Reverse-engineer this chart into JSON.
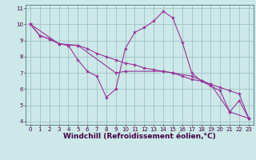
{
  "xlabel": "Windchill (Refroidissement éolien,°C)",
  "bg_color": "#cce8e8",
  "line_color": "#993399",
  "grid_color": "#99bbbb",
  "xlim": [
    -0.5,
    23.5
  ],
  "ylim": [
    3.8,
    11.2
  ],
  "xticks": [
    0,
    1,
    2,
    3,
    4,
    5,
    6,
    7,
    8,
    9,
    10,
    11,
    12,
    13,
    14,
    15,
    16,
    17,
    18,
    19,
    20,
    21,
    22,
    23
  ],
  "yticks": [
    4,
    5,
    6,
    7,
    8,
    9,
    10,
    11
  ],
  "line1_x": [
    0,
    1,
    2,
    3,
    4,
    5,
    6,
    7,
    8,
    9,
    10,
    11,
    12,
    13,
    14,
    15,
    16,
    17,
    18,
    19,
    20,
    21,
    22,
    23
  ],
  "line1_y": [
    10.0,
    9.3,
    9.1,
    8.8,
    8.7,
    7.8,
    7.1,
    6.8,
    5.5,
    6.0,
    8.5,
    9.5,
    9.8,
    10.2,
    10.8,
    10.4,
    8.9,
    7.0,
    6.5,
    6.2,
    5.9,
    4.6,
    5.3,
    4.2
  ],
  "line2_x": [
    0,
    1,
    2,
    3,
    4,
    5,
    6,
    7,
    8,
    9,
    10,
    11,
    12,
    13,
    14,
    15,
    16,
    17,
    18,
    19,
    20,
    21,
    22,
    23
  ],
  "line2_y": [
    10.0,
    9.3,
    9.1,
    8.8,
    8.7,
    8.7,
    8.5,
    8.2,
    8.0,
    7.8,
    7.6,
    7.5,
    7.3,
    7.2,
    7.1,
    7.0,
    6.8,
    6.6,
    6.5,
    6.3,
    6.1,
    5.9,
    5.7,
    4.2
  ],
  "line3_x": [
    0,
    3,
    5,
    9,
    10,
    14,
    15,
    17,
    19,
    21,
    23
  ],
  "line3_y": [
    10.0,
    8.8,
    8.7,
    7.0,
    7.1,
    7.1,
    7.0,
    6.8,
    6.3,
    4.6,
    4.2
  ],
  "marker": "*",
  "markersize": 3,
  "linewidth": 0.8,
  "tick_fontsize": 5,
  "label_fontsize": 6.5
}
